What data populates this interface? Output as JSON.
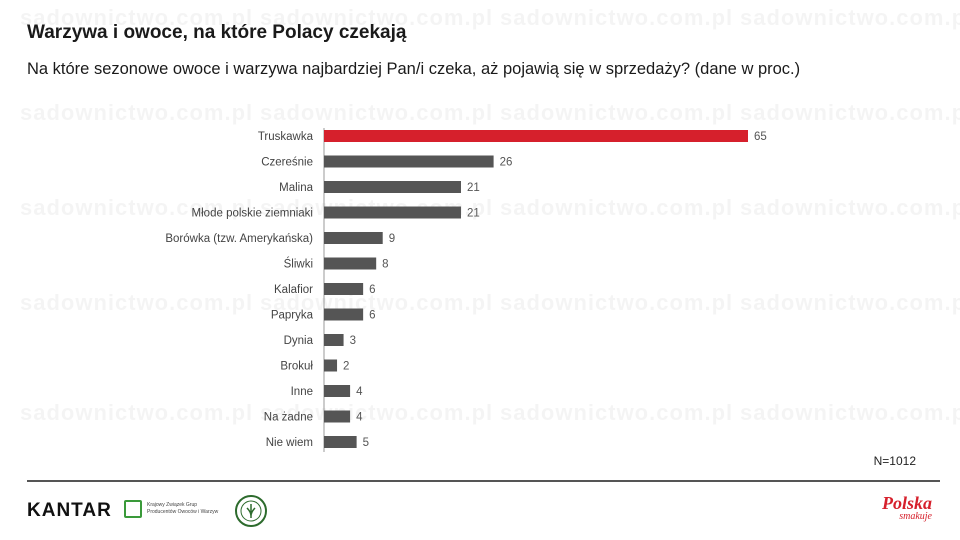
{
  "header": {
    "title": "Warzywa i owoce, na które Polacy czekają",
    "subtitle": "Na które sezonowe owoce i warzywa najbardziej Pan/i czeka, aż pojawią się w sprzedaży? (dane w proc.)"
  },
  "watermark": "sadownictwo.com.pl",
  "colors": {
    "highlight": "#d6202c",
    "bar": "#555555",
    "text": "#222222"
  },
  "chart_data": {
    "type": "bar",
    "orientation": "horizontal",
    "categories": [
      "Truskawka",
      "Czereśnie",
      "Malina",
      "Młode polskie ziemniaki",
      "Borówka (tzw. Amerykańska)",
      "Śliwki",
      "Kalafior",
      "Papryka",
      "Dynia",
      "Brokuł",
      "Inne",
      "Na żadne",
      "Nie wiem"
    ],
    "values": [
      65,
      26,
      21,
      21,
      9,
      8,
      6,
      6,
      3,
      2,
      4,
      4,
      5
    ],
    "highlighted_index": 0,
    "xlim": [
      0,
      65
    ],
    "grid": false,
    "legend": "none",
    "data_labels": true
  },
  "footer": {
    "sample_size": "N=1012",
    "logo_kantar": "KANTAR",
    "logo_kzgp_line1": "Krajowy Związek Grup",
    "logo_kzgp_line2": "Producentów Owoców i Warzyw",
    "logo_polska": "Polska",
    "logo_polska_sub": "smakuje"
  }
}
